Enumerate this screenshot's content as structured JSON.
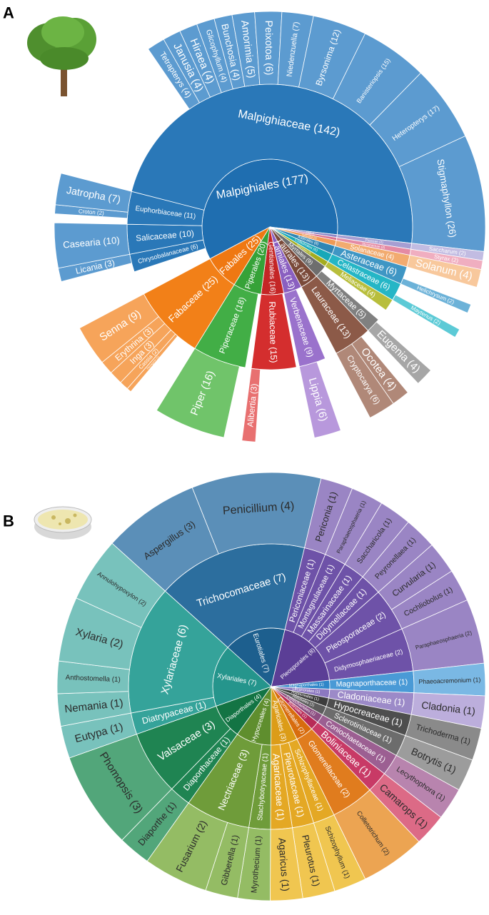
{
  "chart_data": [
    {
      "type": "sunburst",
      "panel_label": "A",
      "nodes": [
        {
          "label": "Malpighiales (177)",
          "value": 177,
          "color": "#1f6eb0",
          "children": [
            {
              "label": "Chrysobalanaceae (6)",
              "value": 6,
              "color": "#2a78b8",
              "children": [
                {
                  "label": "Licania (3)",
                  "value": 3,
                  "color": "#5c9bd0"
                }
              ]
            },
            {
              "label": "Salicaceae (10)",
              "value": 10,
              "color": "#2a78b8",
              "children": [
                {
                  "label": "Casearia (10)",
                  "value": 10,
                  "color": "#5c9bd0"
                }
              ]
            },
            {
              "label": "Euphorbiaceae (11)",
              "value": 11,
              "color": "#2a78b8",
              "children": [
                {
                  "label": "Croton (2)",
                  "value": 2,
                  "color": "#5c9bd0"
                },
                {
                  "label": "Jatropha (7)",
                  "value": 7,
                  "color": "#5c9bd0"
                }
              ]
            },
            {
              "label": "Malpighiaceae (142)",
              "value": 142,
              "color": "#2a78b8",
              "children": [
                {
                  "label": "Tetrapterys (4)",
                  "value": 4,
                  "color": "#5c9bd0"
                },
                {
                  "label": "Janusia (4)",
                  "value": 4,
                  "color": "#5c9bd0"
                },
                {
                  "label": "Hiraea (4)",
                  "value": 4,
                  "color": "#5c9bd0"
                },
                {
                  "label": "Glicophyllum (4)",
                  "value": 4,
                  "color": "#5c9bd0"
                },
                {
                  "label": "Bunchosia (4)",
                  "value": 4,
                  "color": "#5c9bd0"
                },
                {
                  "label": "Amorimia (5)",
                  "value": 5,
                  "color": "#5c9bd0"
                },
                {
                  "label": "Peixotoa (6)",
                  "value": 6,
                  "color": "#5c9bd0"
                },
                {
                  "label": "Niedenzuella (7)",
                  "value": 7,
                  "color": "#5c9bd0"
                },
                {
                  "label": "Byrsonima (12)",
                  "value": 12,
                  "color": "#5c9bd0"
                },
                {
                  "label": "Banisteriopsis (15)",
                  "value": 15,
                  "color": "#5c9bd0"
                },
                {
                  "label": "Heteropterys (17)",
                  "value": 17,
                  "color": "#5c9bd0"
                },
                {
                  "label": "Stigmaphyllon (26)",
                  "value": 26,
                  "color": "#5c9bd0"
                }
              ]
            }
          ]
        },
        {
          "label": "Poales (2)",
          "value": 2,
          "color": "#8f86c6",
          "children": [
            {
              "label": "Poaceae (2)",
              "value": 2,
              "color": "#a69ed2",
              "children": [
                {
                  "label": "Saccharum (2)",
                  "value": 2,
                  "color": "#c2bce2"
                }
              ]
            }
          ]
        },
        {
          "label": "Ericales (2)",
          "value": 2,
          "color": "#d8708f",
          "children": [
            {
              "label": "Styracaceae (2)",
              "value": 2,
              "color": "#e48aa4",
              "children": [
                {
                  "label": "Styrax (2)",
                  "value": 2,
                  "color": "#f0aec0"
                }
              ]
            }
          ]
        },
        {
          "label": "Solanales (4)",
          "value": 4,
          "color": "#ee9a55",
          "children": [
            {
              "label": "Solanaceae (4)",
              "value": 4,
              "color": "#f2ab70",
              "children": [
                {
                  "label": "Solanum (4)",
                  "value": 4,
                  "color": "#f8c89c"
                }
              ]
            }
          ]
        },
        {
          "label": "Asterales (6)",
          "value": 6,
          "color": "#2f86b4",
          "children": [
            {
              "label": "Asteraceae (6)",
              "value": 6,
              "color": "#3f96c4",
              "children": [
                {
                  "label": "Helichrysum (2)",
                  "value": 2,
                  "color": "#6cb2d8"
                }
              ]
            }
          ]
        },
        {
          "label": "Celastrales (6)",
          "value": 6,
          "color": "#17a8b8",
          "children": [
            {
              "label": "Celastraceae (6)",
              "value": 6,
              "color": "#25b6c6",
              "children": [
                {
                  "label": "Maytenus (2)",
                  "value": 2,
                  "color": "#5ccad6"
                }
              ]
            }
          ]
        },
        {
          "label": "Sapindales (4)",
          "value": 4,
          "color": "#a4ac1e",
          "children": [
            {
              "label": "Meliaceae (4)",
              "value": 4,
              "color": "#b8be3c"
            }
          ]
        },
        {
          "label": "Myrtales (9)",
          "value": 9,
          "color": "#6e6e6e",
          "children": [
            {
              "label": "Myrtaceae (5)",
              "value": 5,
              "color": "#808080",
              "children": [
                {
                  "label": "Eugenia (4)",
                  "value": 4,
                  "color": "#a6a6a6"
                }
              ]
            }
          ]
        },
        {
          "label": "Laurales (13)",
          "value": 13,
          "color": "#7a4a3a",
          "children": [
            {
              "label": "Lauraceae (13)",
              "value": 13,
              "color": "#8c5a48",
              "children": [
                {
                  "label": "Ocotea (4)",
                  "value": 4,
                  "color": "#b08878"
                },
                {
                  "label": "Cryptocarya (6)",
                  "value": 6,
                  "color": "#b08878"
                }
              ]
            }
          ]
        },
        {
          "label": "Lamiales (13)",
          "value": 13,
          "color": "#8a5fc0",
          "children": [
            {
              "label": "Verbenaceae (9)",
              "value": 9,
              "color": "#9a72cc",
              "children": [
                {
                  "label": "Lippia (6)",
                  "value": 6,
                  "color": "#b898dc"
                }
              ]
            }
          ]
        },
        {
          "label": "Gentianales (16)",
          "value": 16,
          "color": "#c42626",
          "children": [
            {
              "label": "Rubiaceae (15)",
              "value": 15,
              "color": "#d42e2e",
              "children": [
                {
                  "label": "Alibertia (3)",
                  "value": 3,
                  "color": "#e87070"
                }
              ]
            }
          ]
        },
        {
          "label": "Piperales (20)",
          "value": 20,
          "color": "#36a238",
          "children": [
            {
              "label": "Piperaceae (18)",
              "value": 18,
              "color": "#42ae46",
              "children": [
                {
                  "label": "Piper (16)",
                  "value": 16,
                  "color": "#70c46a"
                }
              ]
            }
          ]
        },
        {
          "label": "Fabales (25)",
          "value": 25,
          "color": "#ef7812",
          "children": [
            {
              "label": "Fabaceae (25)",
              "value": 25,
              "color": "#f28018",
              "children": [
                {
                  "label": "Pterogyne (1)",
                  "value": 1,
                  "color": "#f6a45a"
                },
                {
                  "label": "Cassia (2)",
                  "value": 2,
                  "color": "#f6a45a"
                },
                {
                  "label": "Inga (3)",
                  "value": 3,
                  "color": "#f6a45a"
                },
                {
                  "label": "Erythrina (3)",
                  "value": 3,
                  "color": "#f6a45a"
                },
                {
                  "label": "Senna (9)",
                  "value": 9,
                  "color": "#f6a45a"
                }
              ]
            }
          ]
        }
      ]
    },
    {
      "type": "sunburst",
      "panel_label": "B",
      "nodes": [
        {
          "label": "Eurotiales (7)",
          "value": 7,
          "color": "#1d5f8e",
          "children": [
            {
              "label": "Trichocomaceae (7)",
              "value": 7,
              "color": "#2c6e9e",
              "children": [
                {
                  "label": "Aspergillus (3)",
                  "value": 3,
                  "color": "#5b8fb8"
                },
                {
                  "label": "Penicillium (4)",
                  "value": 4,
                  "color": "#5b8fb8"
                }
              ]
            }
          ]
        },
        {
          "label": "Pleosporales (8)",
          "value": 8,
          "color": "#5b3e96",
          "children": [
            {
              "label": "Periconiaceae (1)",
              "value": 1,
              "color": "#6e52a8",
              "children": [
                {
                  "label": "Periconia (1)",
                  "value": 1,
                  "color": "#9a85c4"
                }
              ]
            },
            {
              "label": "Montagnulaceae (1)",
              "value": 1,
              "color": "#6e52a8",
              "children": [
                {
                  "label": "Paraphaeosphaeria (1)",
                  "value": 1,
                  "color": "#9a85c4"
                }
              ]
            },
            {
              "label": "Massarinaceae (1)",
              "value": 1,
              "color": "#6e52a8",
              "children": [
                {
                  "label": "Saccharicola (1)",
                  "value": 1,
                  "color": "#9a85c4"
                }
              ]
            },
            {
              "label": "Didymellaceae (1)",
              "value": 1,
              "color": "#6e52a8",
              "children": [
                {
                  "label": "Peyronellaea (1)",
                  "value": 1,
                  "color": "#9a85c4"
                }
              ]
            },
            {
              "label": "Pleosporaceae (2)",
              "value": 2,
              "color": "#6e52a8",
              "children": [
                {
                  "label": "Curvularia (1)",
                  "value": 1,
                  "color": "#9a85c4"
                },
                {
                  "label": "Cochliobolus (1)",
                  "value": 1,
                  "color": "#9a85c4"
                }
              ]
            },
            {
              "label": "Didymosphaeriaceae (2)",
              "value": 2,
              "color": "#6e52a8",
              "children": [
                {
                  "label": "Paraphaeosphaeria (2)",
                  "value": 2,
                  "color": "#9a85c4"
                }
              ]
            }
          ]
        },
        {
          "label": "Magnaporthales (1)",
          "value": 1,
          "color": "#2f86c8",
          "children": [
            {
              "label": "Magnaporthaceae (1)",
              "value": 1,
              "color": "#4a9ad6",
              "children": [
                {
                  "label": "Phaeoacremonium (1)",
                  "value": 1,
                  "color": "#7ab8e4"
                }
              ]
            }
          ]
        },
        {
          "label": "Lecanorales (1)",
          "value": 1,
          "color": "#8c78c0",
          "children": [
            {
              "label": "Cladoniaceae (1)",
              "value": 1,
              "color": "#9c8ac8",
              "children": [
                {
                  "label": "Cladonia (1)",
                  "value": 1,
                  "color": "#bcaedc"
                }
              ]
            }
          ]
        },
        {
          "label": "Hypocreales (1)",
          "value": 1,
          "color": "#3c3c3c",
          "children": [
            {
              "label": "Hypocreaceae (1)",
              "value": 1,
              "color": "#4e4e4e",
              "children": [
                {
                  "label": "Trichoderma (1)",
                  "value": 1,
                  "color": "#8a8a8a"
                }
              ]
            }
          ]
        },
        {
          "label": "Helotiales (1)",
          "value": 1,
          "color": "#5c5c5c",
          "children": [
            {
              "label": "Sclerotiniaceae (1)",
              "value": 1,
              "color": "#6c6c6c",
              "children": [
                {
                  "label": "Botrytis (1)",
                  "value": 1,
                  "color": "#9c9c9c"
                }
              ]
            }
          ]
        },
        {
          "label": "Coniochaetales (1)",
          "value": 1,
          "color": "#8c4f82",
          "children": [
            {
              "label": "Coniochaetaceae (1)",
              "value": 1,
              "color": "#9c5f92",
              "children": [
                {
                  "label": "Lecythophora (1)",
                  "value": 1,
                  "color": "#b884ae"
                }
              ]
            }
          ]
        },
        {
          "label": "Boliniales (1)",
          "value": 1,
          "color": "#b82a56",
          "children": [
            {
              "label": "Boliniaceae (1)",
              "value": 1,
              "color": "#c83a66",
              "children": [
                {
                  "label": "Camarops (1)",
                  "value": 1,
                  "color": "#dc6a86"
                }
              ]
            }
          ]
        },
        {
          "label": "Glomerellales (2)",
          "value": 2,
          "color": "#d86c0e",
          "children": [
            {
              "label": "Glomerellaceae (2)",
              "value": 2,
              "color": "#e07c1e",
              "children": [
                {
                  "label": "Colletotrichum (2)",
                  "value": 2,
                  "color": "#eca452"
                }
              ]
            }
          ]
        },
        {
          "label": "Agaricales (3)",
          "value": 3,
          "color": "#dc9c18",
          "children": [
            {
              "label": "Schizophyllaceae (1)",
              "value": 1,
              "color": "#e4a824",
              "children": [
                {
                  "label": "Schizophyllum (1)",
                  "value": 1,
                  "color": "#f0c650"
                }
              ]
            },
            {
              "label": "Pleurotaceae (1)",
              "value": 1,
              "color": "#e4a824",
              "children": [
                {
                  "label": "Pleurotus (1)",
                  "value": 1,
                  "color": "#f0c650"
                }
              ]
            },
            {
              "label": "Agaricaceae (1)",
              "value": 1,
              "color": "#e4a824",
              "children": [
                {
                  "label": "Agaricus (1)",
                  "value": 1,
                  "color": "#f0c650"
                }
              ]
            }
          ]
        },
        {
          "label": "Hypocreales (4)",
          "value": 4,
          "color": "#5f8e2e",
          "children": [
            {
              "label": "Stachybotryaceae (1)",
              "value": 1,
              "color": "#6f9c3a",
              "children": [
                {
                  "label": "Myrothecium (1)",
                  "value": 1,
                  "color": "#94bc64"
                }
              ]
            },
            {
              "label": "Nectriaceae (3)",
              "value": 3,
              "color": "#6f9c3a",
              "children": [
                {
                  "label": "Gibberella (1)",
                  "value": 1,
                  "color": "#94bc64"
                },
                {
                  "label": "Fusarium (2)",
                  "value": 2,
                  "color": "#94bc64"
                }
              ]
            }
          ]
        },
        {
          "label": "Diaporthales (4)",
          "value": 4,
          "color": "#137444",
          "children": [
            {
              "label": "Diaporthaceae (1)",
              "value": 1,
              "color": "#1f8452",
              "children": [
                {
                  "label": "Diaporthe (1)",
                  "value": 1,
                  "color": "#52a67a"
                }
              ]
            },
            {
              "label": "Valsaceae (3)",
              "value": 3,
              "color": "#1f8452",
              "children": [
                {
                  "label": "Phomopsis (3)",
                  "value": 3,
                  "color": "#52a67a"
                }
              ]
            }
          ]
        },
        {
          "label": "Xylariales (7)",
          "value": 7,
          "color": "#25958c",
          "children": [
            {
              "label": "Diatrypaceae (1)",
              "value": 1,
              "color": "#35a39a",
              "children": [
                {
                  "label": "Eutypa (1)",
                  "value": 1,
                  "color": "#78c2bc"
                }
              ]
            },
            {
              "label": "Xylariaceae (6)",
              "value": 6,
              "color": "#35a39a",
              "children": [
                {
                  "label": "Nemania (1)",
                  "value": 1,
                  "color": "#78c2bc"
                },
                {
                  "label": "Anthostomella (1)",
                  "value": 1,
                  "color": "#78c2bc"
                },
                {
                  "label": "Xylaria (2)",
                  "value": 2,
                  "color": "#78c2bc"
                },
                {
                  "label": "Annulohypoxylon (2)",
                  "value": 2,
                  "color": "#78c2bc"
                }
              ]
            }
          ]
        }
      ]
    }
  ]
}
